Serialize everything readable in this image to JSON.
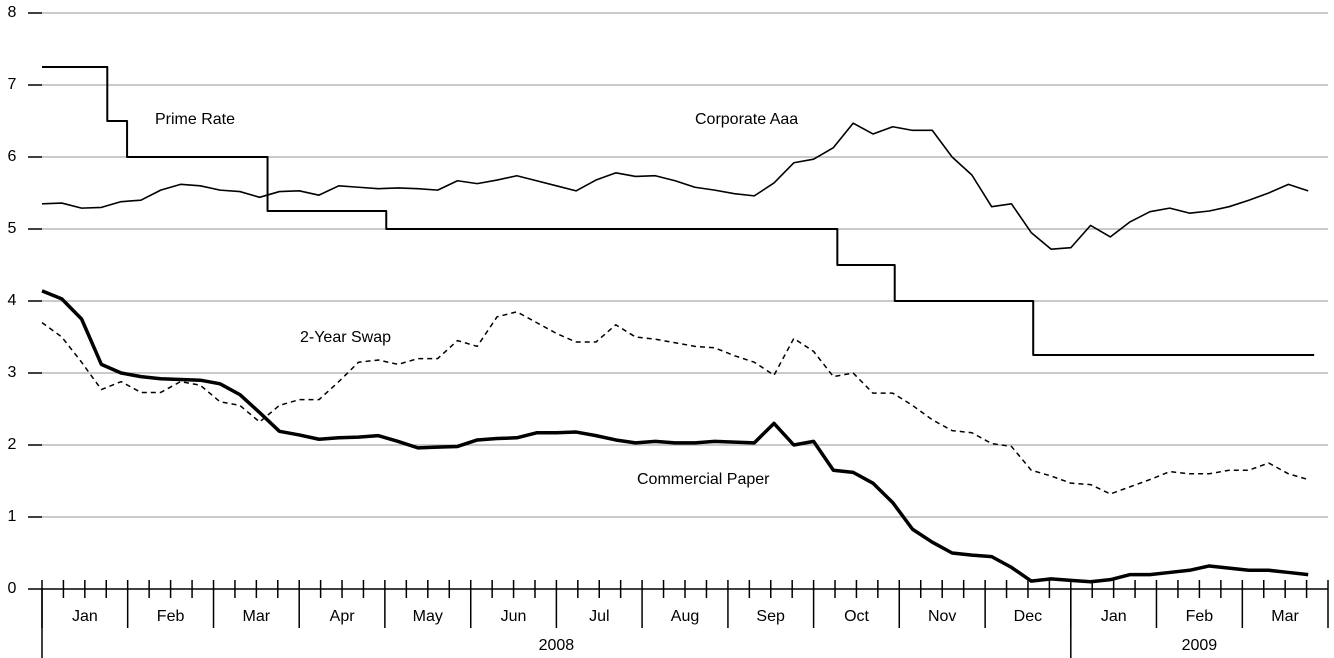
{
  "chart_data": {
    "type": "line",
    "xlim": [
      0,
      65
    ],
    "ylim": [
      0,
      8
    ],
    "yticks": [
      0,
      1,
      2,
      3,
      4,
      5,
      6,
      7,
      8
    ],
    "grid": true,
    "month_ticks": [
      0,
      4.33,
      8.67,
      13,
      17.33,
      21.67,
      26,
      30.33,
      34.67,
      39,
      43.33,
      47.67,
      52,
      56.33,
      60.67,
      65
    ],
    "month_labels": [
      {
        "value": 2.17,
        "label": "Jan"
      },
      {
        "value": 6.5,
        "label": "Feb"
      },
      {
        "value": 10.83,
        "label": "Mar"
      },
      {
        "value": 15.17,
        "label": "Apr"
      },
      {
        "value": 19.5,
        "label": "May"
      },
      {
        "value": 23.83,
        "label": "Jun"
      },
      {
        "value": 28.17,
        "label": "Jul"
      },
      {
        "value": 32.5,
        "label": "Aug"
      },
      {
        "value": 36.83,
        "label": "Sep"
      },
      {
        "value": 41.17,
        "label": "Oct"
      },
      {
        "value": 45.5,
        "label": "Nov"
      },
      {
        "value": 49.83,
        "label": "Dec"
      },
      {
        "value": 54.17,
        "label": "Jan"
      },
      {
        "value": 58.5,
        "label": "Feb"
      },
      {
        "value": 62.83,
        "label": "Mar"
      }
    ],
    "year_ticks": [
      0,
      52
    ],
    "year_labels": [
      {
        "value": 26,
        "label": "2008"
      },
      {
        "value": 58.5,
        "label": "2009"
      }
    ],
    "x": [
      0,
      1,
      2,
      3,
      4,
      5,
      6,
      7,
      8,
      9,
      10,
      11,
      12,
      13,
      14,
      15,
      16,
      17,
      18,
      19,
      20,
      21,
      22,
      23,
      24,
      25,
      26,
      27,
      28,
      29,
      30,
      31,
      32,
      33,
      34,
      35,
      36,
      37,
      38,
      39,
      40,
      41,
      42,
      43,
      44,
      45,
      46,
      47,
      48,
      49,
      50,
      51,
      52,
      53,
      54,
      55,
      56,
      57,
      58,
      59,
      60,
      61,
      62,
      63,
      64
    ],
    "series": [
      {
        "name": "Prime Rate",
        "color": "#000000",
        "step": true,
        "x": [
          0,
          3.3,
          4.3,
          11.4,
          17.4,
          40.2,
          43.1,
          50.1,
          64.3
        ],
        "values": [
          7.25,
          6.5,
          6,
          5.25,
          5,
          4.5,
          4,
          3.25,
          3.25
        ]
      },
      {
        "name": "Corporate Aaa",
        "color": "#000000",
        "values": [
          5.35,
          5.36,
          5.29,
          5.3,
          5.38,
          5.4,
          5.54,
          5.62,
          5.6,
          5.54,
          5.52,
          5.44,
          5.52,
          5.53,
          5.47,
          5.6,
          5.58,
          5.56,
          5.57,
          5.56,
          5.54,
          5.67,
          5.63,
          5.68,
          5.74,
          5.67,
          5.6,
          5.53,
          5.68,
          5.78,
          5.73,
          5.74,
          5.67,
          5.58,
          5.54,
          5.49,
          5.46,
          5.64,
          5.92,
          5.97,
          6.13,
          6.47,
          6.32,
          6.42,
          6.37,
          6.37,
          6.0,
          5.75,
          5.31,
          5.35,
          4.95,
          4.72,
          4.74,
          5.05,
          4.89,
          5.1,
          5.24,
          5.29,
          5.22,
          5.25,
          5.31,
          5.4,
          5.5,
          5.62,
          5.53
        ]
      },
      {
        "name": "2-Year Swap",
        "color": "#000000",
        "style": "dashed",
        "values": [
          3.7,
          3.5,
          3.15,
          2.77,
          2.88,
          2.73,
          2.73,
          2.88,
          2.83,
          2.6,
          2.55,
          2.32,
          2.55,
          2.63,
          2.63,
          2.88,
          3.15,
          3.18,
          3.12,
          3.2,
          3.2,
          3.45,
          3.37,
          3.78,
          3.85,
          3.7,
          3.55,
          3.43,
          3.43,
          3.67,
          3.5,
          3.47,
          3.42,
          3.37,
          3.35,
          3.24,
          3.15,
          2.97,
          3.48,
          3.3,
          2.95,
          3.0,
          2.72,
          2.72,
          2.55,
          2.35,
          2.2,
          2.17,
          2.02,
          1.98,
          1.65,
          1.57,
          1.47,
          1.45,
          1.32,
          1.42,
          1.52,
          1.63,
          1.6,
          1.6,
          1.65,
          1.65,
          1.75,
          1.6,
          1.52
        ]
      },
      {
        "name": "Commercial Paper",
        "color": "#000000",
        "values": [
          4.14,
          4.03,
          3.75,
          3.12,
          3.0,
          2.95,
          2.92,
          2.91,
          2.9,
          2.85,
          2.7,
          2.45,
          2.19,
          2.14,
          2.08,
          2.1,
          2.11,
          2.13,
          2.05,
          1.96,
          1.97,
          1.98,
          2.07,
          2.09,
          2.1,
          2.17,
          2.17,
          2.18,
          2.13,
          2.07,
          2.03,
          2.05,
          2.03,
          2.03,
          2.05,
          2.04,
          2.03,
          2.3,
          2.0,
          2.05,
          1.65,
          1.62,
          1.47,
          1.2,
          0.83,
          0.65,
          0.5,
          0.47,
          0.45,
          0.3,
          0.11,
          0.14,
          0.12,
          0.1,
          0.13,
          0.2,
          0.2,
          0.23,
          0.26,
          0.32,
          0.29,
          0.26,
          0.26,
          0.23,
          0.2
        ]
      }
    ]
  }
}
